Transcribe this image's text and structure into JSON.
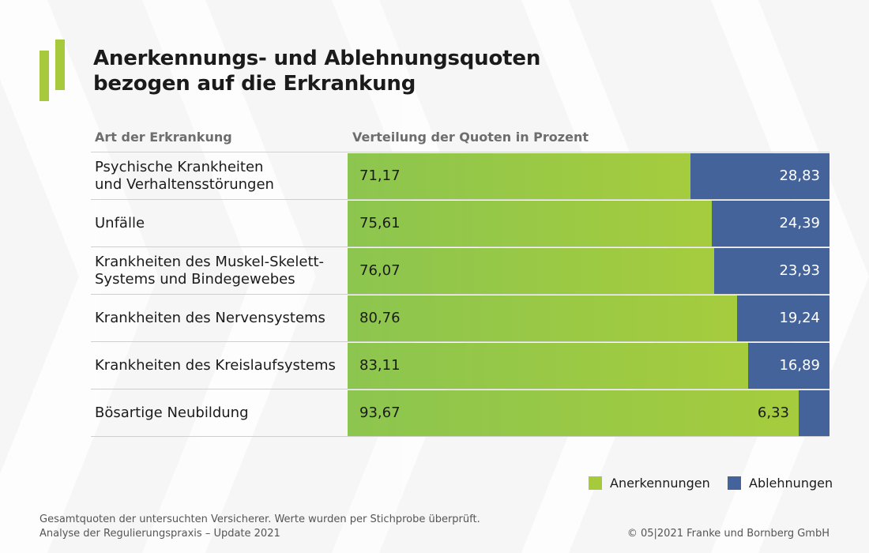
{
  "title": "Anerkennungs- und Ablehnungsquoten\nbezogen auf die Erkrankung",
  "colors": {
    "accent_green": "#a7c93c",
    "rejection_blue": "#44639a"
  },
  "chart_data": {
    "type": "bar",
    "orientation": "horizontal",
    "stacked": true,
    "category_header": "Art der Erkrankung",
    "value_header": "Verteilung der Quoten in Prozent",
    "categories": [
      "Psychische Krankheiten\nund Verhaltensstörungen",
      "Unfälle",
      "Krankheiten des Muskel-Skelett-\nSystems und Bindegewebes",
      "Krankheiten des Nervensystems",
      "Krankheiten des Kreislaufsystems",
      "Bösartige Neubildung"
    ],
    "series": [
      {
        "name": "Anerkennungen",
        "color": "#a7c93c",
        "values": [
          71.17,
          75.61,
          76.07,
          80.76,
          83.11,
          93.67
        ],
        "labels": [
          "71,17",
          "75,61",
          "76,07",
          "80,76",
          "83,11",
          "93,67"
        ]
      },
      {
        "name": "Ablehnungen",
        "color": "#44639a",
        "values": [
          28.83,
          24.39,
          23.93,
          19.24,
          16.89,
          6.33
        ],
        "labels": [
          "28,83",
          "24,39",
          "23,93",
          "19,24",
          "16,89",
          "6,33"
        ]
      }
    ],
    "xlim": [
      0,
      100
    ],
    "legend_position": "bottom-right"
  },
  "footer": {
    "note_line1": "Gesamtquoten der untersuchten Versicherer. Werte wurden per Stichprobe überprüft.",
    "note_line2": "Analyse der Regulierungspraxis – Update 2021",
    "copyright": "© 05|2021 Franke und Bornberg GmbH"
  }
}
